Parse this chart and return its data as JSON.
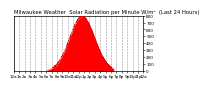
{
  "title": "Milwaukee Weather  Solar Radiation per Minute W/m²  (Last 24 Hours)",
  "ylim": [
    0,
    800
  ],
  "xlim": [
    0,
    1440
  ],
  "ylabel_values": [
    800,
    700,
    600,
    500,
    400,
    300,
    200,
    100,
    0
  ],
  "fill_color": "#FF0000",
  "line_color": "#CC0000",
  "bg_color": "#FFFFFF",
  "plot_bg_color": "#FFFFFF",
  "grid_color": "#999999",
  "tick_color": "#000000",
  "title_fontsize": 3.8,
  "axis_fontsize": 3.0,
  "peak_minute": 760,
  "peak_value": 790,
  "sunrise_minute": 370,
  "sunset_minute": 1110,
  "xtick_step": 60
}
